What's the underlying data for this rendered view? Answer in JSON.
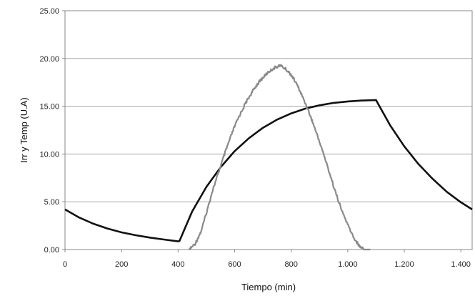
{
  "chart_data": {
    "type": "line",
    "xlabel": "Tiempo (min)",
    "ylabel": "Irr y Temp (U.A)",
    "xlim": [
      0,
      1440
    ],
    "ylim": [
      0,
      25
    ],
    "x_ticks": [
      "0",
      "200",
      "400",
      "600",
      "800",
      "1.000",
      "1.200",
      "1.400"
    ],
    "x_tick_values": [
      0,
      200,
      400,
      600,
      800,
      1000,
      1200,
      1400
    ],
    "y_ticks": [
      "0.00",
      "5.00",
      "10.00",
      "15.00",
      "20.00",
      "25.00"
    ],
    "y_tick_values": [
      0,
      5,
      10,
      15,
      20,
      25
    ],
    "grid": "horizontal",
    "legend": "none",
    "series": [
      {
        "color": "#111111",
        "x": [
          0,
          50,
          100,
          150,
          200,
          250,
          300,
          350,
          400,
          405,
          450,
          500,
          550,
          600,
          650,
          700,
          750,
          800,
          850,
          900,
          950,
          1000,
          1050,
          1100,
          1150,
          1200,
          1250,
          1300,
          1350,
          1400,
          1440
        ],
        "y": [
          4.2,
          3.35,
          2.7,
          2.2,
          1.8,
          1.5,
          1.25,
          1.05,
          0.85,
          0.9,
          4.0,
          6.55,
          8.6,
          10.3,
          11.65,
          12.75,
          13.6,
          14.25,
          14.75,
          15.1,
          15.35,
          15.5,
          15.6,
          15.65,
          13.0,
          10.8,
          8.95,
          7.4,
          6.05,
          4.95,
          4.2
        ]
      },
      {
        "color": "#8a8a8a",
        "x": [
          440,
          460,
          480,
          500,
          520,
          540,
          560,
          580,
          600,
          620,
          640,
          660,
          680,
          700,
          720,
          740,
          760,
          780,
          800,
          820,
          840,
          860,
          880,
          900,
          920,
          940,
          960,
          980,
          1000,
          1020,
          1040,
          1060,
          1080
        ],
        "y": [
          0,
          0.6,
          1.8,
          3.8,
          6.0,
          7.8,
          9.6,
          11.3,
          12.9,
          14.2,
          15.4,
          16.4,
          17.3,
          18.0,
          18.6,
          19.0,
          19.3,
          18.9,
          18.3,
          17.3,
          16.0,
          14.6,
          13.0,
          11.3,
          9.5,
          7.6,
          5.7,
          4.0,
          2.6,
          1.3,
          0.4,
          0,
          0
        ]
      }
    ]
  }
}
